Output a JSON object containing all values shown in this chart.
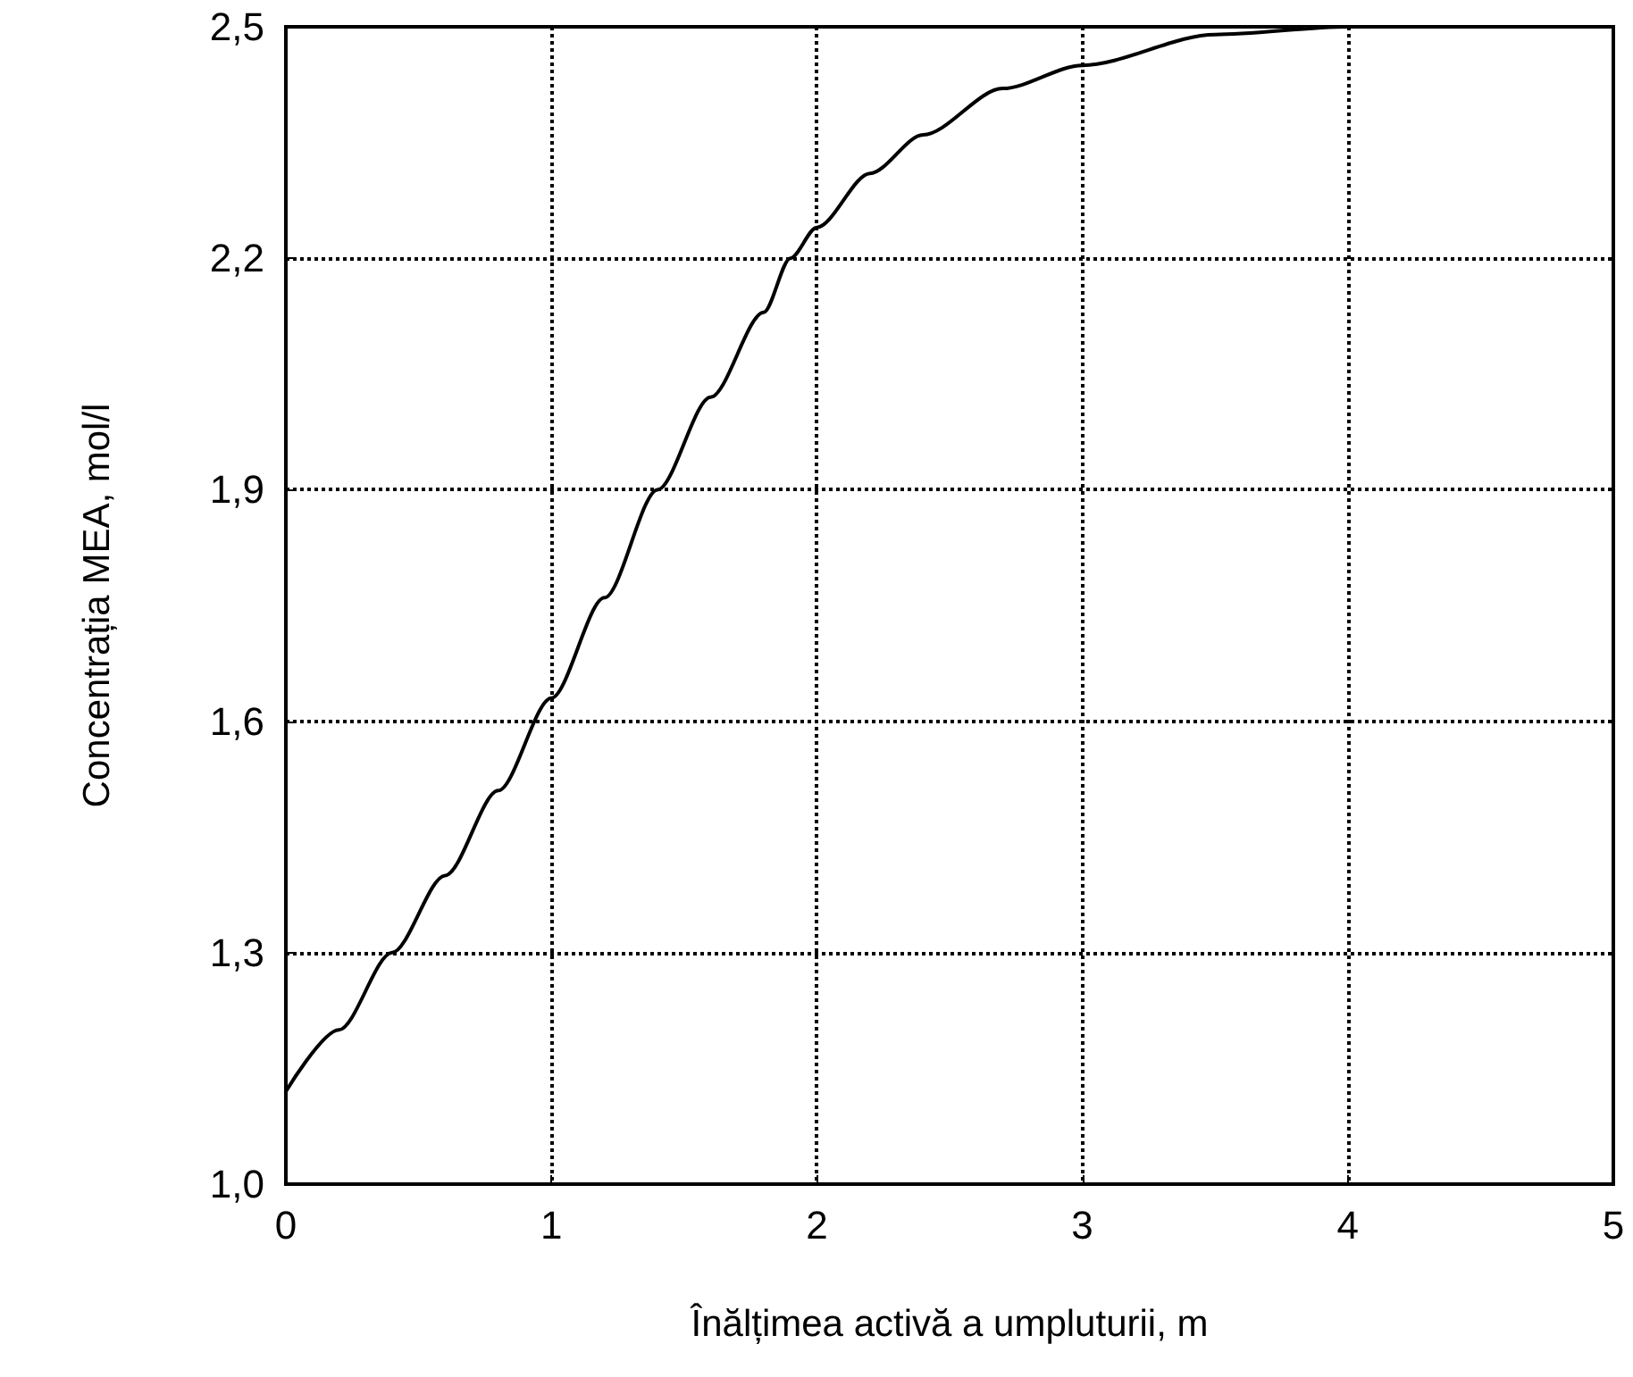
{
  "chart_data": {
    "type": "line",
    "xlabel": "Înălțimea activă a umpluturii, m",
    "ylabel": "Concentrația MEA, mol/l",
    "x": [
      0,
      0.2,
      0.4,
      0.6,
      0.8,
      1,
      1.2,
      1.4,
      1.6,
      1.8,
      1.9,
      2,
      2.2,
      2.4,
      2.7,
      3,
      3.5,
      4,
      4.5,
      5
    ],
    "series": [
      {
        "color": "#000000",
        "values": [
          1.12,
          1.2,
          1.3,
          1.4,
          1.51,
          1.63,
          1.76,
          1.9,
          2.02,
          2.13,
          2.2,
          2.24,
          2.31,
          2.36,
          2.42,
          2.45,
          2.49,
          2.5,
          2.5,
          2.5
        ]
      }
    ],
    "xlim": [
      0,
      5
    ],
    "xticks": [
      0,
      1,
      2,
      3,
      4,
      5
    ],
    "ylim": [
      1.0,
      2.5
    ],
    "yticks": [
      {
        "value": 1.0,
        "label": "1,0"
      },
      {
        "value": 1.3,
        "label": "1,3"
      },
      {
        "value": 1.6,
        "label": "1,6"
      },
      {
        "value": 1.9,
        "label": "1,9"
      },
      {
        "value": 2.2,
        "label": "2,2"
      },
      {
        "value": 2.5,
        "label": "2,5"
      }
    ],
    "grid": true,
    "marker": "none",
    "line_style": "solid"
  }
}
